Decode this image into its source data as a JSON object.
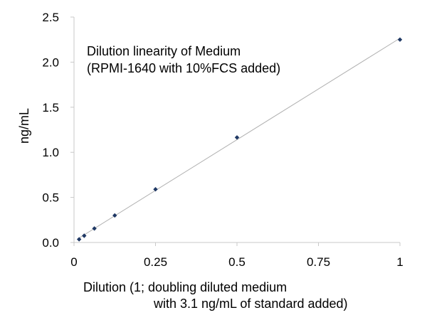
{
  "chart_data": {
    "type": "scatter",
    "title": "",
    "annotation": [
      "Dilution linearity of Medium",
      "(RPMI-1640 with 10%FCS added)"
    ],
    "xlabel": [
      "Dilution (1; doubling diluted medium",
      "with 3.1 ng/mL of standard added)"
    ],
    "ylabel": "ng/mL",
    "xlim": [
      0,
      1
    ],
    "ylim": [
      0,
      2.5
    ],
    "x_ticks": [
      {
        "value": 0,
        "label": "0"
      },
      {
        "value": 0.25,
        "label": "0.25"
      },
      {
        "value": 0.5,
        "label": "0.5"
      },
      {
        "value": 0.75,
        "label": "0.75"
      },
      {
        "value": 1,
        "label": "1"
      }
    ],
    "y_ticks": [
      {
        "value": 0,
        "label": "0.0"
      },
      {
        "value": 0.5,
        "label": "0.5"
      },
      {
        "value": 1.0,
        "label": "1.0"
      },
      {
        "value": 1.5,
        "label": "1.5"
      },
      {
        "value": 2.0,
        "label": "2.0"
      },
      {
        "value": 2.5,
        "label": "2.5"
      }
    ],
    "grid": false,
    "legend": "none",
    "trendline": {
      "type": "linear"
    },
    "series": [
      {
        "x": [
          0.015625,
          0.03125,
          0.0625,
          0.125,
          0.25,
          0.5,
          1
        ],
        "y": [
          0.035,
          0.075,
          0.155,
          0.3,
          0.59,
          1.165,
          2.25
        ]
      }
    ],
    "colors": {
      "marker": "#1f3864",
      "trendline": "#b0b0b0",
      "axis": "#c8c8c8"
    }
  }
}
